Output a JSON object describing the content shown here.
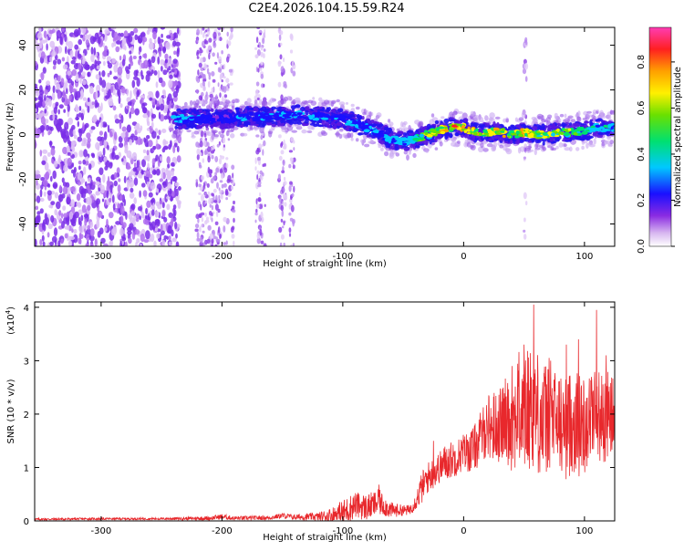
{
  "title": "C2E4.2026.104.15.59.R24",
  "chart_data": [
    {
      "type": "heatmap",
      "xlabel": "Height of straight line (km)",
      "ylabel": "Frequency (Hz)",
      "xlim": [
        -355,
        125
      ],
      "ylim": [
        -50,
        48
      ],
      "xticks": [
        -300,
        -200,
        -100,
        0,
        100
      ],
      "xtick_labels": [
        "-300",
        "-200",
        "-100",
        "0",
        "100"
      ],
      "yticks": [
        -40,
        -20,
        0,
        20,
        40
      ],
      "ytick_labels": [
        "-40",
        "-20",
        "0",
        "20",
        "40"
      ],
      "colorbar": {
        "label": "Normalized spectral amplitude",
        "range": [
          0,
          0.95
        ],
        "ticks": [
          0.0,
          0.2,
          0.4,
          0.6,
          0.8
        ],
        "tick_labels": [
          "0.0",
          "0.2",
          "0.4",
          "0.6",
          "0.8"
        ]
      },
      "ridge": {
        "x": [
          -240,
          -220,
          -200,
          -180,
          -160,
          -140,
          -120,
          -100,
          -90,
          -80,
          -70,
          -60,
          -50,
          -40,
          -30,
          -20,
          -10,
          0,
          10,
          20,
          30,
          40,
          50,
          60,
          70,
          80,
          90,
          100,
          110,
          120
        ],
        "frequency": [
          7,
          7,
          7,
          8,
          8,
          9,
          8,
          7,
          5,
          3,
          1,
          -2,
          -3,
          -2,
          0,
          2,
          3,
          3,
          1,
          1,
          1,
          0,
          1,
          0,
          0,
          1,
          1,
          2,
          3,
          3
        ],
        "peak_amplitude": [
          0.45,
          0.4,
          0.3,
          0.45,
          0.4,
          0.45,
          0.4,
          0.4,
          0.4,
          0.4,
          0.45,
          0.45,
          0.5,
          0.6,
          0.75,
          0.85,
          0.9,
          0.95,
          0.85,
          0.8,
          0.85,
          0.8,
          0.85,
          0.8,
          0.7,
          0.8,
          0.75,
          0.6,
          0.55,
          0.5
        ]
      },
      "noise_region_x": [
        -355,
        -235
      ]
    },
    {
      "type": "line",
      "xlabel": "Height of straight line (km)",
      "ylabel": "SNR (10 * v/v)",
      "y_multiplier": "(x10",
      "y_multiplier_exp": "4",
      "y_multiplier_close": ")",
      "xlim": [
        -355,
        125
      ],
      "ylim": [
        0,
        4.1
      ],
      "xticks": [
        -300,
        -200,
        -100,
        0,
        100
      ],
      "xtick_labels": [
        "-300",
        "-200",
        "-100",
        "0",
        "100"
      ],
      "yticks": [
        0,
        1,
        2,
        3,
        4
      ],
      "ytick_labels": [
        "0",
        "1",
        "2",
        "3",
        "4"
      ],
      "series": [
        {
          "name": "SNR",
          "color": "#e8282c",
          "x": [
            -355,
            -300,
            -250,
            -210,
            -200,
            -190,
            -160,
            -150,
            -140,
            -120,
            -110,
            -100,
            -90,
            -80,
            -70,
            -60,
            -50,
            -45,
            -40,
            -35,
            -30,
            -25,
            -20,
            -15,
            -10,
            -5,
            0,
            5,
            10,
            15,
            20,
            25,
            30,
            35,
            40,
            45,
            50,
            55,
            60,
            65,
            70,
            75,
            80,
            85,
            90,
            95,
            100,
            105,
            110,
            115,
            120,
            125
          ],
          "values": [
            0.03,
            0.04,
            0.04,
            0.05,
            0.08,
            0.05,
            0.06,
            0.1,
            0.07,
            0.08,
            0.1,
            0.15,
            0.3,
            0.25,
            0.35,
            0.2,
            0.2,
            0.2,
            0.35,
            0.6,
            0.8,
            0.9,
            1.0,
            1.1,
            1.15,
            1.2,
            1.3,
            1.3,
            1.4,
            1.6,
            1.8,
            1.75,
            1.8,
            1.9,
            1.8,
            2.1,
            1.9,
            2.2,
            2.1,
            1.85,
            2.0,
            1.9,
            1.8,
            1.7,
            1.9,
            1.8,
            1.8,
            2.0,
            2.0,
            1.9,
            2.0,
            1.9
          ],
          "spread": [
            0.02,
            0.02,
            0.02,
            0.04,
            0.05,
            0.04,
            0.04,
            0.05,
            0.05,
            0.08,
            0.15,
            0.25,
            0.25,
            0.25,
            0.25,
            0.15,
            0.1,
            0.1,
            0.15,
            0.3,
            0.3,
            0.3,
            0.3,
            0.35,
            0.35,
            0.35,
            0.35,
            0.4,
            0.45,
            0.5,
            0.6,
            0.7,
            0.7,
            0.8,
            0.9,
            1.1,
            1.2,
            1.2,
            1.2,
            1.1,
            1.1,
            1.0,
            1.0,
            1.0,
            1.0,
            1.0,
            0.9,
            0.9,
            0.9,
            0.9,
            0.8,
            0.8
          ],
          "peaks": [
            [
              -70,
              0.68
            ],
            [
              -25,
              1.5
            ],
            [
              40,
              2.9
            ],
            [
              50,
              3.3
            ],
            [
              58,
              4.05
            ],
            [
              72,
              3.0
            ],
            [
              85,
              3.3
            ],
            [
              95,
              3.4
            ],
            [
              110,
              3.95
            ],
            [
              118,
              3.1
            ]
          ]
        }
      ]
    }
  ]
}
